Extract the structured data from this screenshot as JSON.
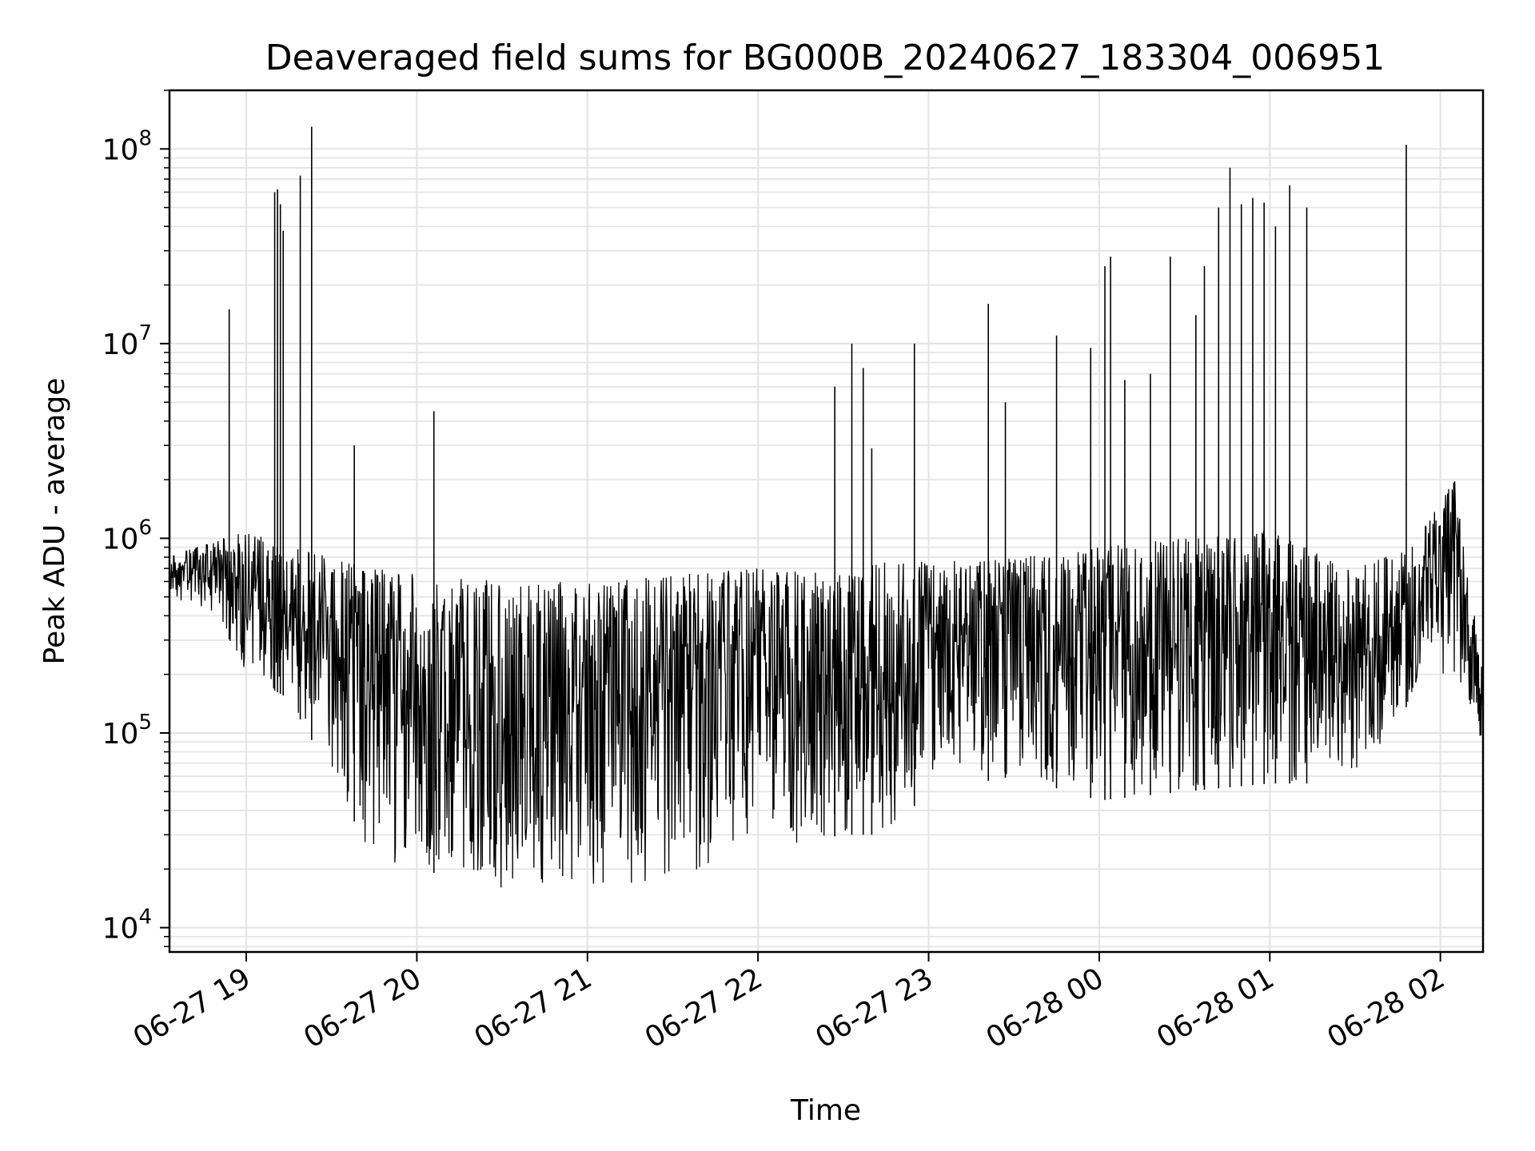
{
  "chart_data": {
    "type": "line",
    "title": "Deaveraged field sums for BG000B_20240627_183304_006951",
    "xlabel": "Time",
    "ylabel": "Peak ADU - average",
    "yscale": "log",
    "ylim": [
      7500,
      200000000
    ],
    "xlim": [
      "2024-06-27 18:33",
      "2024-06-28 02:15"
    ],
    "x_ticks": [
      {
        "time": "2024-06-27 19:00",
        "label": "06-27 19"
      },
      {
        "time": "2024-06-27 20:00",
        "label": "06-27 20"
      },
      {
        "time": "2024-06-27 21:00",
        "label": "06-27 21"
      },
      {
        "time": "2024-06-27 22:00",
        "label": "06-27 22"
      },
      {
        "time": "2024-06-27 23:00",
        "label": "06-27 23"
      },
      {
        "time": "2024-06-28 00:00",
        "label": "06-28 00"
      },
      {
        "time": "2024-06-28 01:00",
        "label": "06-28 01"
      },
      {
        "time": "2024-06-28 02:00",
        "label": "06-28 02"
      }
    ],
    "y_ticks": [
      {
        "value": 10000,
        "base": "10",
        "exp": "4"
      },
      {
        "value": 100000,
        "base": "10",
        "exp": "5"
      },
      {
        "value": 1000000,
        "base": "10",
        "exp": "6"
      },
      {
        "value": 10000000,
        "base": "10",
        "exp": "7"
      },
      {
        "value": 100000000,
        "base": "10",
        "exp": "8"
      }
    ],
    "grid": true,
    "line_color": "#000000",
    "grid_color": "#e5e5e5",
    "envelope": {
      "time": [
        "2024-06-27 18:33",
        "2024-06-27 18:50",
        "2024-06-27 19:00",
        "2024-06-27 19:15",
        "2024-06-27 19:30",
        "2024-06-27 19:45",
        "2024-06-27 20:00",
        "2024-06-27 20:30",
        "2024-06-27 21:00",
        "2024-06-27 21:30",
        "2024-06-27 22:00",
        "2024-06-27 22:30",
        "2024-06-27 22:45",
        "2024-06-27 23:00",
        "2024-06-27 23:30",
        "2024-06-28 00:00",
        "2024-06-28 00:30",
        "2024-06-28 01:00",
        "2024-06-28 01:30",
        "2024-06-28 01:50",
        "2024-06-28 02:05",
        "2024-06-28 02:15"
      ],
      "low": [
        500000,
        400000,
        200000,
        150000,
        60000,
        22000,
        20000,
        16000,
        16000,
        17000,
        25000,
        30000,
        30000,
        50000,
        60000,
        45000,
        50000,
        55000,
        55000,
        150000,
        200000,
        80000
      ],
      "high": [
        800000,
        1000000,
        1100000,
        900000,
        800000,
        700000,
        650000,
        600000,
        600000,
        650000,
        700000,
        650000,
        800000,
        750000,
        800000,
        900000,
        1000000,
        1100000,
        700000,
        900000,
        2000000,
        200000
      ]
    },
    "spikes": [
      {
        "time": "2024-06-27 18:54",
        "value": 15000000
      },
      {
        "time": "2024-06-27 19:10",
        "value": 60000000
      },
      {
        "time": "2024-06-27 19:11",
        "value": 62000000
      },
      {
        "time": "2024-06-27 19:12",
        "value": 52000000
      },
      {
        "time": "2024-06-27 19:13",
        "value": 38000000
      },
      {
        "time": "2024-06-27 19:19",
        "value": 73000000
      },
      {
        "time": "2024-06-27 19:23",
        "value": 130000000
      },
      {
        "time": "2024-06-27 19:38",
        "value": 3000000
      },
      {
        "time": "2024-06-27 20:06",
        "value": 4500000
      },
      {
        "time": "2024-06-27 22:27",
        "value": 6000000
      },
      {
        "time": "2024-06-27 22:33",
        "value": 10000000
      },
      {
        "time": "2024-06-27 22:37",
        "value": 7500000
      },
      {
        "time": "2024-06-27 22:40",
        "value": 2900000
      },
      {
        "time": "2024-06-27 22:55",
        "value": 10000000
      },
      {
        "time": "2024-06-27 23:21",
        "value": 16000000
      },
      {
        "time": "2024-06-27 23:27",
        "value": 5000000
      },
      {
        "time": "2024-06-27 23:45",
        "value": 11000000
      },
      {
        "time": "2024-06-27 23:57",
        "value": 9500000
      },
      {
        "time": "2024-06-28 00:02",
        "value": 25000000
      },
      {
        "time": "2024-06-28 00:04",
        "value": 28000000
      },
      {
        "time": "2024-06-28 00:09",
        "value": 6500000
      },
      {
        "time": "2024-06-28 00:18",
        "value": 7000000
      },
      {
        "time": "2024-06-28 00:25",
        "value": 28000000
      },
      {
        "time": "2024-06-28 00:34",
        "value": 14000000
      },
      {
        "time": "2024-06-28 00:37",
        "value": 25000000
      },
      {
        "time": "2024-06-28 00:42",
        "value": 50000000
      },
      {
        "time": "2024-06-28 00:46",
        "value": 80000000
      },
      {
        "time": "2024-06-28 00:50",
        "value": 52000000
      },
      {
        "time": "2024-06-28 00:54",
        "value": 56000000
      },
      {
        "time": "2024-06-28 00:58",
        "value": 53000000
      },
      {
        "time": "2024-06-28 01:02",
        "value": 40000000
      },
      {
        "time": "2024-06-28 01:07",
        "value": 65000000
      },
      {
        "time": "2024-06-28 01:13",
        "value": 50000000
      },
      {
        "time": "2024-06-28 01:48",
        "value": 105000000
      }
    ]
  }
}
